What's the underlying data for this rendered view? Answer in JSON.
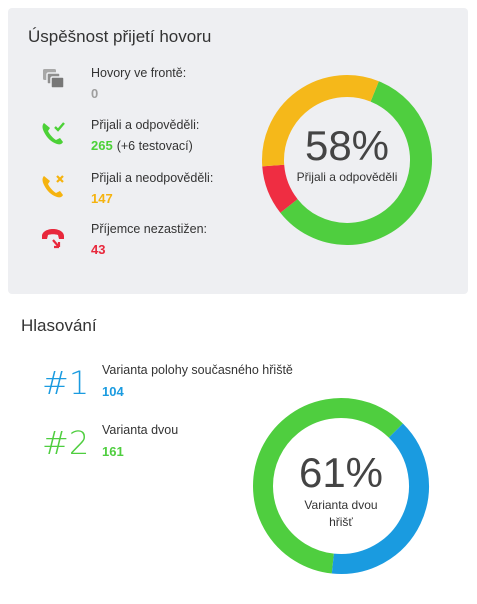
{
  "call_card": {
    "title": "Úspěšnost přijetí hovoru",
    "stats": [
      {
        "label": "Hovory ve frontě:",
        "value": "0",
        "note": "",
        "icon": "call-queue-icon",
        "color": "#9e9e9e"
      },
      {
        "label": "Přijali a odpověděli:",
        "value": "265",
        "note": "(+6 testovací)",
        "icon": "phone-check-icon",
        "color": "#4cd137"
      },
      {
        "label": "Přijali a neodpověděli:",
        "value": "147",
        "note": "",
        "icon": "phone-x-icon",
        "color": "#f5b30f"
      },
      {
        "label": "Příjemce nezastižen:",
        "value": "43",
        "note": "",
        "icon": "phone-missed-icon",
        "color": "#e8283c"
      }
    ],
    "donut": {
      "percent_text": "58%",
      "caption": "Přijali a odpověděli",
      "segments": [
        {
          "name": "Přijali a odpověděli",
          "value": 265,
          "color": "#4fce3f"
        },
        {
          "name": "Příjemce nezastižen",
          "value": 43,
          "color": "#ef2d42"
        },
        {
          "name": "Přijali a neodpověděli",
          "value": 147,
          "color": "#f5b81a"
        }
      ],
      "gap_color": "#8a8a8a"
    }
  },
  "voting": {
    "title": "Hlasování",
    "items": [
      {
        "rank": "#1",
        "label": "Varianta polohy současného hřiště",
        "value": "104",
        "color": "#1a9be0"
      },
      {
        "rank": "#2",
        "label": "Varianta dvou",
        "value": "161",
        "color": "#4fce3f"
      }
    ],
    "donut": {
      "percent_text": "61%",
      "caption": "Varianta dvou hřišť",
      "segments": [
        {
          "name": "Varianta dvou",
          "value": 161,
          "color": "#4fce3f"
        },
        {
          "name": "Varianta polohy současného hřiště",
          "value": 104,
          "color": "#1a9be0"
        }
      ]
    }
  }
}
